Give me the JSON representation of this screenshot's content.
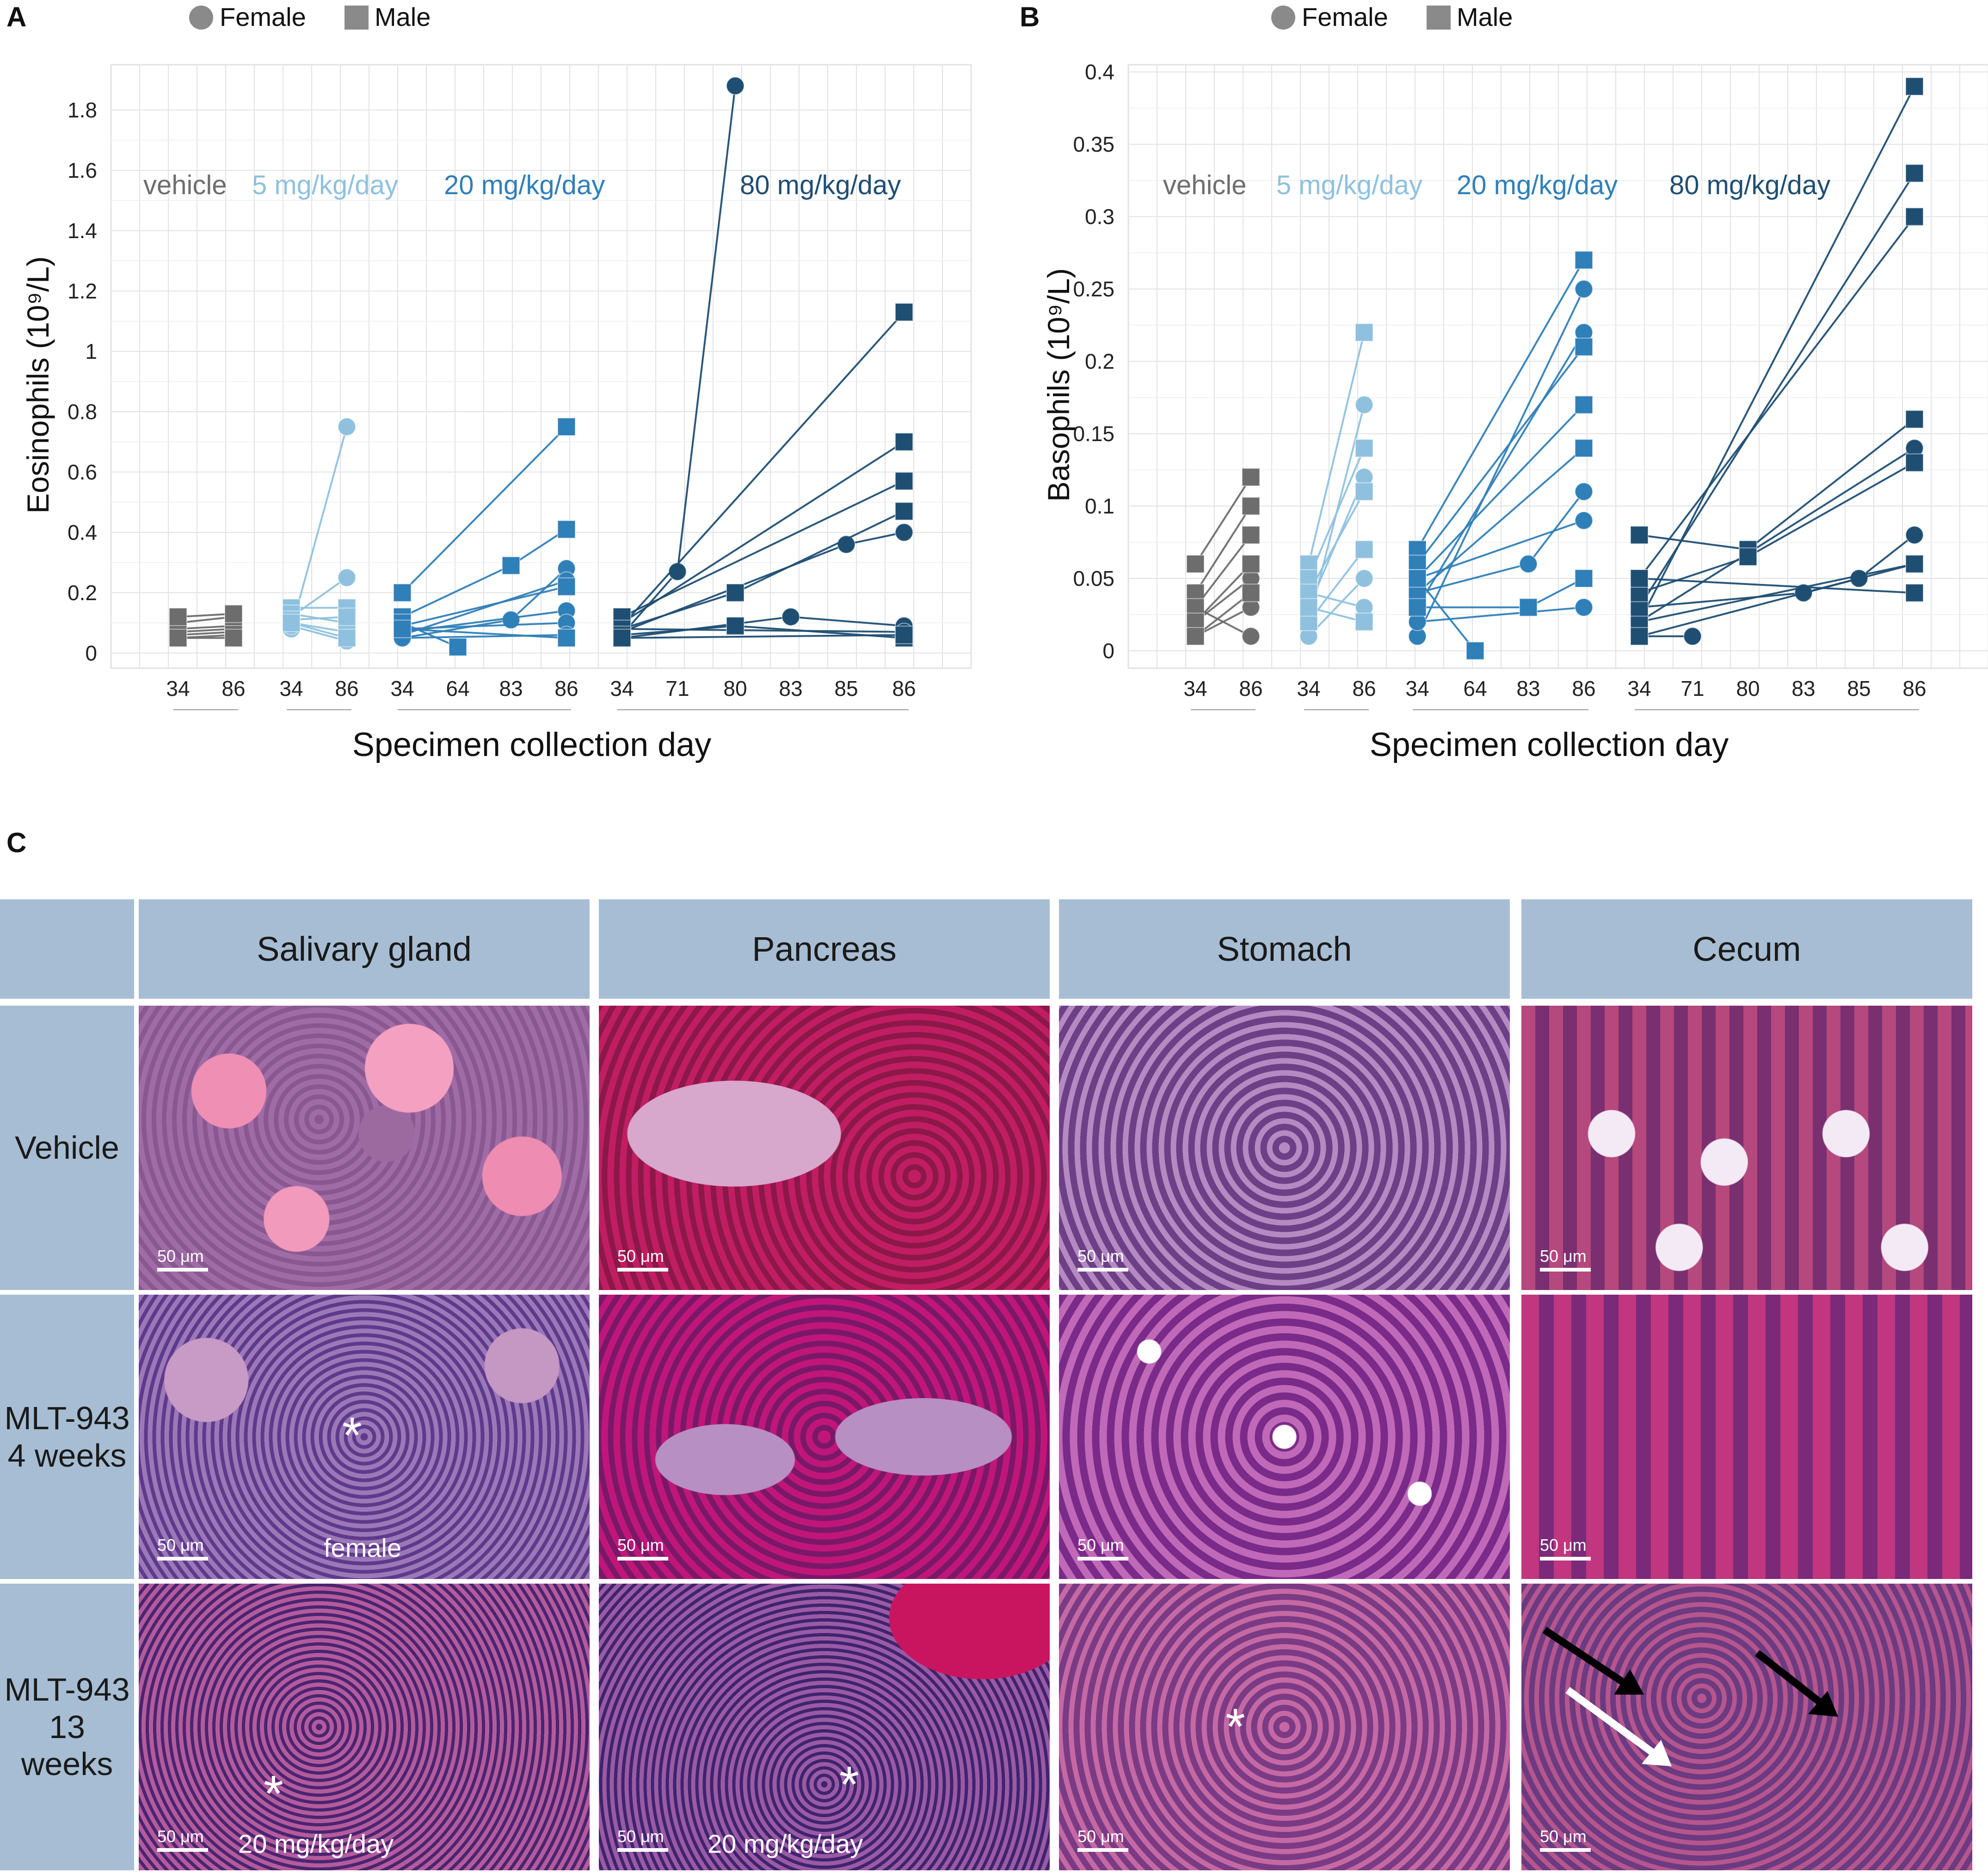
{
  "panels": {
    "A": "A",
    "B": "B",
    "C": "C"
  },
  "legend": {
    "female": "Female",
    "male": "Male"
  },
  "colors": {
    "vehicle": "#6d6d6d",
    "dose5": "#8fc1df",
    "dose20": "#2f7fb8",
    "dose80": "#1f4e73",
    "header_bg": "#a7bdd3",
    "grid": "#e2e2e2"
  },
  "chart_data": [
    {
      "id": "A",
      "type": "line",
      "title": "",
      "xlabel": "Specimen collection day",
      "ylabel": "Eosinophils (10⁹/L)",
      "ylim": [
        -0.05,
        1.95
      ],
      "yticks": [
        0,
        0.2,
        0.4,
        0.6,
        0.8,
        1,
        1.2,
        1.4,
        1.6,
        1.8
      ],
      "ytick_labels": [
        "0",
        "0.2",
        "0.4",
        "0.6",
        "0.8",
        "1",
        "1.2",
        "1.4",
        "1.6",
        "1.8"
      ],
      "group_labels": [
        "vehicle",
        "5 mg/kg/day",
        "20 mg/kg/day",
        "80 mg/kg/day"
      ],
      "groups": [
        {
          "name": "vehicle",
          "days": [
            "34",
            "86"
          ],
          "female": [
            [
              0.06,
              0.07
            ],
            [
              0.05,
              0.06
            ],
            [
              0.07,
              0.08
            ]
          ],
          "male": [
            [
              0.08,
              0.09
            ],
            [
              0.1,
              0.12
            ],
            [
              0.12,
              0.13
            ],
            [
              0.05,
              0.05
            ]
          ]
        },
        {
          "name": "5 mg/kg/day",
          "days": [
            "34",
            "86"
          ],
          "female": [
            [
              0.08,
              0.75
            ],
            [
              0.12,
              0.25
            ],
            [
              0.1,
              0.07
            ],
            [
              0.09,
              0.04
            ]
          ],
          "male": [
            [
              0.15,
              0.15
            ],
            [
              0.13,
              0.1
            ],
            [
              0.11,
              0.12
            ],
            [
              0.1,
              0.05
            ]
          ]
        },
        {
          "name": "20 mg/kg/day",
          "days": [
            "34",
            "64",
            "83",
            "86"
          ],
          "female": [
            [
              0.05,
              null,
              0.11,
              0.28
            ],
            [
              0.06,
              null,
              null,
              0.24
            ],
            [
              0.07,
              null,
              null,
              0.14
            ],
            [
              0.08,
              null,
              null,
              0.1
            ],
            [
              0.05,
              null,
              null,
              0.06
            ]
          ],
          "male": [
            [
              0.2,
              null,
              null,
              0.75
            ],
            [
              0.12,
              null,
              0.29,
              0.41
            ],
            [
              0.09,
              null,
              null,
              0.22
            ],
            [
              0.1,
              0.02,
              null,
              null
            ],
            [
              0.08,
              null,
              null,
              0.05
            ]
          ]
        },
        {
          "name": "80 mg/kg/day",
          "days": [
            "34",
            "71",
            "80",
            "83",
            "85",
            "86"
          ],
          "female": [
            [
              0.06,
              0.27,
              1.88,
              null,
              null,
              null
            ],
            [
              0.07,
              null,
              null,
              null,
              0.36,
              0.4
            ],
            [
              0.05,
              null,
              null,
              0.12,
              null,
              0.09
            ],
            [
              0.08,
              null,
              null,
              null,
              null,
              0.07
            ]
          ],
          "male": [
            [
              0.09,
              null,
              null,
              null,
              null,
              1.13
            ],
            [
              0.1,
              null,
              null,
              null,
              null,
              0.7
            ],
            [
              0.12,
              null,
              null,
              null,
              null,
              0.57
            ],
            [
              0.08,
              null,
              0.2,
              null,
              null,
              0.47
            ],
            [
              0.06,
              null,
              0.09,
              null,
              null,
              0.05
            ],
            [
              0.05,
              null,
              null,
              null,
              null,
              0.06
            ]
          ]
        }
      ]
    },
    {
      "id": "B",
      "type": "line",
      "title": "",
      "xlabel": "Specimen collection day",
      "ylabel": "Basophils (10⁹/L)",
      "ylim": [
        -0.012,
        0.405
      ],
      "yticks": [
        0,
        0.05,
        0.1,
        0.15,
        0.2,
        0.25,
        0.3,
        0.35,
        0.4
      ],
      "ytick_labels": [
        "0",
        "0.05",
        "0.1",
        "0.15",
        "0.2",
        "0.25",
        "0.3",
        "0.35",
        "0.4"
      ],
      "group_labels": [
        "vehicle",
        "5 mg/kg/day",
        "20 mg/kg/day",
        "80 mg/kg/day"
      ],
      "groups": [
        {
          "name": "vehicle",
          "days": [
            "34",
            "86"
          ],
          "female": [
            [
              0.02,
              0.05
            ],
            [
              0.03,
              0.01
            ],
            [
              0.01,
              0.03
            ]
          ],
          "male": [
            [
              0.06,
              0.12
            ],
            [
              0.04,
              0.1
            ],
            [
              0.03,
              0.08
            ],
            [
              0.02,
              0.06
            ],
            [
              0.01,
              0.04
            ]
          ]
        },
        {
          "name": "5 mg/kg/day",
          "days": [
            "34",
            "86"
          ],
          "female": [
            [
              0.02,
              0.17
            ],
            [
              0.03,
              0.12
            ],
            [
              0.01,
              0.05
            ],
            [
              0.04,
              0.03
            ]
          ],
          "male": [
            [
              0.06,
              0.22
            ],
            [
              0.05,
              0.14
            ],
            [
              0.04,
              0.11
            ],
            [
              0.02,
              0.07
            ],
            [
              0.03,
              0.02
            ]
          ]
        },
        {
          "name": "20 mg/kg/day",
          "days": [
            "34",
            "64",
            "83",
            "86"
          ],
          "female": [
            [
              0.01,
              null,
              null,
              0.25
            ],
            [
              0.03,
              null,
              null,
              0.22
            ],
            [
              0.04,
              null,
              0.06,
              0.11
            ],
            [
              0.05,
              null,
              null,
              0.09
            ],
            [
              0.02,
              null,
              null,
              0.03
            ]
          ],
          "male": [
            [
              0.07,
              null,
              null,
              0.27
            ],
            [
              0.06,
              null,
              null,
              0.21
            ],
            [
              0.05,
              null,
              null,
              0.17
            ],
            [
              0.04,
              null,
              null,
              0.14
            ],
            [
              0.03,
              null,
              0.03,
              0.05
            ],
            [
              0.05,
              0.0,
              null,
              null
            ]
          ]
        },
        {
          "name": "80 mg/kg/day",
          "days": [
            "34",
            "71",
            "80",
            "83",
            "85",
            "86"
          ],
          "female": [
            [
              0.02,
              null,
              null,
              null,
              null,
              0.14
            ],
            [
              0.01,
              0.01,
              null,
              null,
              null,
              null
            ],
            [
              0.03,
              null,
              null,
              0.04,
              0.05,
              0.08
            ],
            [
              0.02,
              null,
              null,
              null,
              null,
              0.06
            ]
          ],
          "male": [
            [
              0.02,
              null,
              null,
              null,
              null,
              0.39
            ],
            [
              0.03,
              null,
              null,
              null,
              null,
              0.33
            ],
            [
              0.05,
              null,
              null,
              null,
              null,
              0.3
            ],
            [
              0.08,
              null,
              0.07,
              null,
              null,
              0.16
            ],
            [
              0.04,
              null,
              0.065,
              null,
              null,
              0.13
            ],
            [
              0.01,
              null,
              null,
              null,
              null,
              0.06
            ],
            [
              0.05,
              null,
              null,
              null,
              null,
              0.04
            ]
          ]
        }
      ]
    }
  ],
  "histology": {
    "columns": [
      "Salivary gland",
      "Pancreas",
      "Stomach",
      "Cecum"
    ],
    "rows": [
      {
        "label_line1": "Vehicle",
        "label_line2": ""
      },
      {
        "label_line1": "MLT-943",
        "label_line2": "4 weeks"
      },
      {
        "label_line1": "MLT-943",
        "label_line2": "13 weeks"
      }
    ],
    "scalebar": "50 μm",
    "asterisk": "*",
    "note_female": "female",
    "note_dose": "20 mg/kg/day"
  }
}
